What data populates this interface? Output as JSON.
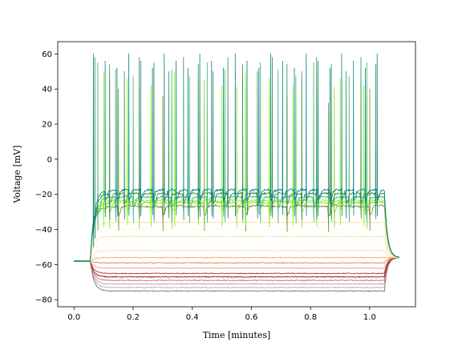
{
  "chart_data": {
    "type": "line",
    "title": "",
    "xlabel": "Time [minutes]",
    "ylabel": "Voltage [mV]",
    "xlim": [
      -0.055,
      1.155
    ],
    "ylim": [
      -84,
      67
    ],
    "xticks": [
      0.0,
      0.2,
      0.4,
      0.6,
      0.8,
      1.0
    ],
    "xtick_labels": [
      "0.0",
      "0.2",
      "0.4",
      "0.6",
      "0.8",
      "1.0"
    ],
    "yticks": [
      -80,
      -60,
      -40,
      -20,
      0,
      20,
      40,
      60
    ],
    "ytick_labels": [
      "−80",
      "−60",
      "−40",
      "−20",
      "0",
      "20",
      "40",
      "60"
    ],
    "grid": false,
    "legend": "none",
    "stimulus_window": [
      0.055,
      1.05
    ],
    "rest_potential": -58,
    "series": [
      {
        "color": "#696969",
        "plateau": -75
      },
      {
        "color": "#a9a9a9",
        "plateau": -73
      },
      {
        "color": "#bc8f8f",
        "plateau": -71
      },
      {
        "color": "#cd5c5c",
        "plateau": -69
      },
      {
        "color": "#8b0000",
        "plateau": -67
      },
      {
        "color": "#b22222",
        "plateau": -65
      },
      {
        "color": "#e9967a",
        "plateau": -62
      },
      {
        "color": "#cd853f",
        "plateau": -59
      },
      {
        "color": "#f4a460",
        "plateau": -56
      },
      {
        "color": "#ffdead",
        "plateau": -52
      },
      {
        "color": "#fff8dc",
        "plateau": -48
      },
      {
        "color": "#eee8aa",
        "plateau": -44
      },
      {
        "color": "#fffacd",
        "plateau": -40
      },
      {
        "color": "#f5deb3",
        "plateau": -36
      },
      {
        "color": "#6b8e23",
        "plateau": -27,
        "spike_times": [
          0.15,
          0.3,
          0.44,
          0.58,
          0.72,
          0.86,
          1.0
        ],
        "spike_peak": 40
      },
      {
        "color": "#9acd32",
        "plateau": -25,
        "spike_times": [
          0.12,
          0.22,
          0.33,
          0.44,
          0.55,
          0.66,
          0.77,
          0.88,
          0.99
        ],
        "spike_peak": 45
      },
      {
        "color": "#7cfc00",
        "plateau": -24,
        "spike_times": [
          0.1,
          0.18,
          0.26,
          0.34,
          0.42,
          0.5,
          0.58,
          0.66,
          0.74,
          0.82,
          0.9,
          0.98
        ],
        "spike_peak": 50
      },
      {
        "color": "#3cb371",
        "plateau": -22,
        "spike_times": [
          0.08,
          0.14,
          0.2,
          0.27,
          0.33,
          0.39,
          0.45,
          0.51,
          0.57,
          0.63,
          0.69,
          0.75,
          0.81,
          0.87,
          0.93,
          0.99
        ],
        "spike_peak": 55
      },
      {
        "color": "#2e8b57",
        "plateau": -20,
        "spike_times": [
          0.07,
          0.12,
          0.17,
          0.22,
          0.27,
          0.32,
          0.37,
          0.42,
          0.47,
          0.52,
          0.57,
          0.62,
          0.67,
          0.72,
          0.77,
          0.82,
          0.87,
          0.92,
          0.97,
          1.02
        ],
        "spike_peak": 58
      },
      {
        "color": "#008080",
        "plateau": -18,
        "spike_times": [
          0.065,
          0.105,
          0.145,
          0.185,
          0.225,
          0.265,
          0.305,
          0.345,
          0.385,
          0.425,
          0.465,
          0.505,
          0.545,
          0.585,
          0.625,
          0.665,
          0.705,
          0.745,
          0.785,
          0.825,
          0.865,
          0.905,
          0.945,
          0.985,
          1.025
        ],
        "spike_peak": 60
      }
    ]
  }
}
